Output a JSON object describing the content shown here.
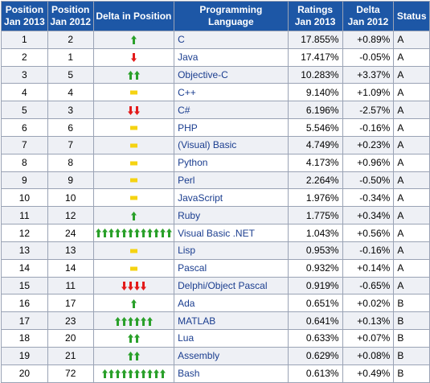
{
  "headers": {
    "pos2013": [
      "Position",
      "Jan 2013"
    ],
    "pos2012": [
      "Position",
      "Jan 2012"
    ],
    "delta_pos": "Delta in Position",
    "language": "Programming Language",
    "ratings": [
      "Ratings",
      "Jan 2013"
    ],
    "delta": [
      "Delta",
      "Jan 2012"
    ],
    "status": "Status"
  },
  "colors": {
    "header_bg": "#1d57a6",
    "up": "#2aa02a",
    "down": "#e31b1b",
    "same": "#f5d312"
  },
  "rows": [
    {
      "pos2013": "1",
      "pos2012": "2",
      "trend": "up",
      "count": 1,
      "icon": "green-up-arrow-icon",
      "language": "C",
      "rating": "17.855%",
      "delta": "+0.89%",
      "status": "A"
    },
    {
      "pos2013": "2",
      "pos2012": "1",
      "trend": "down",
      "count": 1,
      "icon": "red-down-arrow-icon",
      "language": "Java",
      "rating": "17.417%",
      "delta": "-0.05%",
      "status": "A"
    },
    {
      "pos2013": "3",
      "pos2012": "5",
      "trend": "up",
      "count": 2,
      "icon": "green-up-arrow-icon",
      "language": "Objective-C",
      "rating": "10.283%",
      "delta": "+3.37%",
      "status": "A"
    },
    {
      "pos2013": "4",
      "pos2012": "4",
      "trend": "same",
      "count": 1,
      "icon": "yellow-equal-icon",
      "language": "C++",
      "rating": "9.140%",
      "delta": "+1.09%",
      "status": "A"
    },
    {
      "pos2013": "5",
      "pos2012": "3",
      "trend": "down",
      "count": 2,
      "icon": "red-down-arrow-icon",
      "language": "C#",
      "rating": "6.196%",
      "delta": "-2.57%",
      "status": "A"
    },
    {
      "pos2013": "6",
      "pos2012": "6",
      "trend": "same",
      "count": 1,
      "icon": "yellow-equal-icon",
      "language": "PHP",
      "rating": "5.546%",
      "delta": "-0.16%",
      "status": "A"
    },
    {
      "pos2013": "7",
      "pos2012": "7",
      "trend": "same",
      "count": 1,
      "icon": "yellow-equal-icon",
      "language": "(Visual) Basic",
      "rating": "4.749%",
      "delta": "+0.23%",
      "status": "A"
    },
    {
      "pos2013": "8",
      "pos2012": "8",
      "trend": "same",
      "count": 1,
      "icon": "yellow-equal-icon",
      "language": "Python",
      "rating": "4.173%",
      "delta": "+0.96%",
      "status": "A"
    },
    {
      "pos2013": "9",
      "pos2012": "9",
      "trend": "same",
      "count": 1,
      "icon": "yellow-equal-icon",
      "language": "Perl",
      "rating": "2.264%",
      "delta": "-0.50%",
      "status": "A"
    },
    {
      "pos2013": "10",
      "pos2012": "10",
      "trend": "same",
      "count": 1,
      "icon": "yellow-equal-icon",
      "language": "JavaScript",
      "rating": "1.976%",
      "delta": "-0.34%",
      "status": "A"
    },
    {
      "pos2013": "11",
      "pos2012": "12",
      "trend": "up",
      "count": 1,
      "icon": "green-up-arrow-icon",
      "language": "Ruby",
      "rating": "1.775%",
      "delta": "+0.34%",
      "status": "A"
    },
    {
      "pos2013": "12",
      "pos2012": "24",
      "trend": "up",
      "count": 12,
      "icon": "green-up-arrow-icon",
      "language": "Visual Basic .NET",
      "rating": "1.043%",
      "delta": "+0.56%",
      "status": "A"
    },
    {
      "pos2013": "13",
      "pos2012": "13",
      "trend": "same",
      "count": 1,
      "icon": "yellow-equal-icon",
      "language": "Lisp",
      "rating": "0.953%",
      "delta": "-0.16%",
      "status": "A"
    },
    {
      "pos2013": "14",
      "pos2012": "14",
      "trend": "same",
      "count": 1,
      "icon": "yellow-equal-icon",
      "language": "Pascal",
      "rating": "0.932%",
      "delta": "+0.14%",
      "status": "A"
    },
    {
      "pos2013": "15",
      "pos2012": "11",
      "trend": "down",
      "count": 4,
      "icon": "red-down-arrow-icon",
      "language": "Delphi/Object Pascal",
      "rating": "0.919%",
      "delta": "-0.65%",
      "status": "A"
    },
    {
      "pos2013": "16",
      "pos2012": "17",
      "trend": "up",
      "count": 1,
      "icon": "green-up-arrow-icon",
      "language": "Ada",
      "rating": "0.651%",
      "delta": "+0.02%",
      "status": "B"
    },
    {
      "pos2013": "17",
      "pos2012": "23",
      "trend": "up",
      "count": 6,
      "icon": "green-up-arrow-icon",
      "language": "MATLAB",
      "rating": "0.641%",
      "delta": "+0.13%",
      "status": "B"
    },
    {
      "pos2013": "18",
      "pos2012": "20",
      "trend": "up",
      "count": 2,
      "icon": "green-up-arrow-icon",
      "language": "Lua",
      "rating": "0.633%",
      "delta": "+0.07%",
      "status": "B"
    },
    {
      "pos2013": "19",
      "pos2012": "21",
      "trend": "up",
      "count": 2,
      "icon": "green-up-arrow-icon",
      "language": "Assembly",
      "rating": "0.629%",
      "delta": "+0.08%",
      "status": "B"
    },
    {
      "pos2013": "20",
      "pos2012": "72",
      "trend": "up",
      "count": 10,
      "icon": "green-up-arrow-icon",
      "language": "Bash",
      "rating": "0.613%",
      "delta": "+0.49%",
      "status": "B"
    }
  ]
}
